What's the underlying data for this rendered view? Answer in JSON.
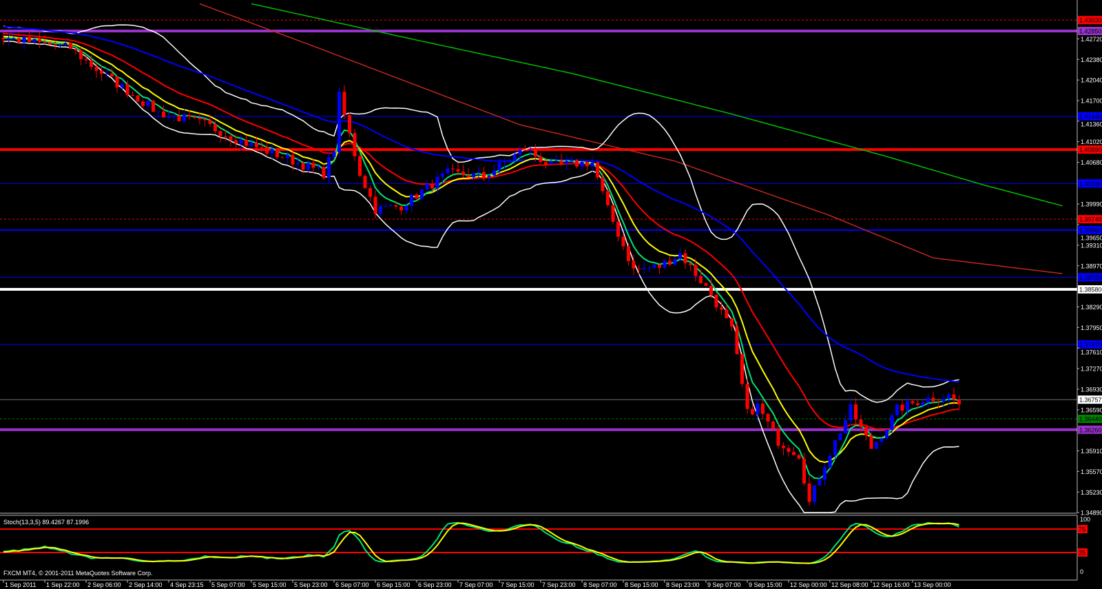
{
  "chart_data": {
    "type": "candlestick",
    "symbol_timeframe": "",
    "timeframe_hint": "H1",
    "colors": {
      "bull": "#0000ff",
      "bear": "#ff0000",
      "background": "#000000",
      "axis": "#c0c0c0"
    },
    "price_axis": {
      "ylim": [
        1.3489,
        1.4303
      ],
      "ticks": [
        "1.42720",
        "1.42380",
        "1.42040",
        "1.41700",
        "1.41360",
        "1.41020",
        "1.40680",
        "1.39990",
        "1.39650",
        "1.39310",
        "1.38970",
        "1.38290",
        "1.37950",
        "1.37610",
        "1.37270",
        "1.36930",
        "1.36590",
        "1.35910",
        "1.35570",
        "1.35230",
        "1.34890"
      ]
    },
    "time_axis": {
      "ticks": [
        "1 Sep 2011",
        "1 Sep 22:00",
        "2 Sep 06:00",
        "2 Sep 14:00",
        "4 Sep 23:15",
        "5 Sep 07:00",
        "5 Sep 15:00",
        "5 Sep 23:00",
        "6 Sep 07:00",
        "6 Sep 15:00",
        "6 Sep 23:00",
        "7 Sep 07:00",
        "7 Sep 15:00",
        "7 Sep 23:00",
        "8 Sep 07:00",
        "8 Sep 15:00",
        "8 Sep 23:00",
        "9 Sep 07:00",
        "9 Sep 15:00",
        "12 Sep 00:00",
        "12 Sep 08:00",
        "12 Sep 16:00",
        "13 Sep 00:00"
      ],
      "bars_per_tick": 8
    },
    "close_keypoints": [
      [
        0,
        1.4274
      ],
      [
        13,
        1.4257
      ],
      [
        17,
        1.4228
      ],
      [
        30,
        1.415
      ],
      [
        39,
        1.4131
      ],
      [
        46,
        1.4103
      ],
      [
        55,
        1.4074
      ],
      [
        62,
        1.405
      ],
      [
        64,
        1.409
      ],
      [
        65,
        1.4177
      ],
      [
        69,
        1.405
      ],
      [
        72,
        1.399
      ],
      [
        77,
        1.3996
      ],
      [
        86,
        1.405
      ],
      [
        93,
        1.4045
      ],
      [
        101,
        1.409
      ],
      [
        106,
        1.4062
      ],
      [
        114,
        1.4068
      ],
      [
        117,
        1.399
      ],
      [
        122,
        1.389
      ],
      [
        127,
        1.3896
      ],
      [
        131,
        1.3917
      ],
      [
        137,
        1.385
      ],
      [
        141,
        1.379
      ],
      [
        144,
        1.3653
      ],
      [
        146,
        1.3665
      ],
      [
        150,
        1.3607
      ],
      [
        154,
        1.3585
      ],
      [
        156,
        1.3505
      ],
      [
        159,
        1.357
      ],
      [
        164,
        1.366
      ],
      [
        168,
        1.3596
      ],
      [
        171,
        1.363
      ],
      [
        173,
        1.366
      ],
      [
        178,
        1.3676
      ],
      [
        183,
        1.3682
      ],
      [
        185,
        1.3668
      ]
    ],
    "bar_count": 186,
    "indicators": {
      "ma_fast": {
        "color": "#00e676",
        "period": 5
      },
      "ma_mid": {
        "color": "#ffff00",
        "period": 10
      },
      "ma_slow": {
        "color": "#ff0000",
        "period": 21
      },
      "ma_blue": {
        "color": "#0000ff",
        "period": 55
      },
      "bollinger": {
        "color": "#ffffff",
        "period": 20,
        "deviation": 2
      },
      "ma_100_shifted": {
        "color": "#c0281e",
        "keypoints": [
          [
            38,
            1.433
          ],
          [
            60,
            1.426
          ],
          [
            100,
            1.413
          ],
          [
            130,
            1.407
          ],
          [
            160,
            1.398
          ],
          [
            180,
            1.391
          ],
          [
            205,
            1.3884
          ]
        ]
      },
      "ma_200_shifted": {
        "color": "#00c000",
        "keypoints": [
          [
            48,
            1.433
          ],
          [
            80,
            1.427
          ],
          [
            110,
            1.4215
          ],
          [
            140,
            1.415
          ],
          [
            170,
            1.408
          ],
          [
            190,
            1.403
          ],
          [
            205,
            1.3996
          ]
        ]
      }
    },
    "levels": [
      {
        "price": "1.43030",
        "color": "#ff0000",
        "style": "dotted",
        "tag_text_color": "#000"
      },
      {
        "price": "1.42850",
        "color": "#9932cc",
        "style": "thick",
        "tag_text_color": "#000"
      },
      {
        "price": "1.41440",
        "color": "#0000ff",
        "style": "thin",
        "tag_text_color": "#000"
      },
      {
        "price": "1.40890",
        "color": "#ff0000",
        "style": "thick",
        "tag_text_color": "#000"
      },
      {
        "price": "1.40330",
        "color": "#0000ff",
        "style": "thin",
        "tag_text_color": "#000"
      },
      {
        "price": "1.39740",
        "color": "#ff0000",
        "style": "dotted",
        "tag_text_color": "#000"
      },
      {
        "price": "1.39560",
        "color": "#0000ff",
        "style": "medium",
        "tag_text_color": "#000"
      },
      {
        "price": "1.38780",
        "color": "#0000ff",
        "style": "thin",
        "tag_text_color": "#000"
      },
      {
        "price": "1.38580",
        "color": "#ffffff",
        "style": "thick",
        "tag_text_color": "#000"
      },
      {
        "price": "1.37670",
        "color": "#0000ff",
        "style": "thin",
        "tag_text_color": "#000"
      },
      {
        "price": "1.36757",
        "color": "#6a7380",
        "style": "thin",
        "tag_text_color": "#000",
        "tag_bg": "#ffffff"
      },
      {
        "price": "1.36440",
        "color": "#008000",
        "style": "dotted",
        "tag_text_color": "#000"
      },
      {
        "price": "1.36260",
        "color": "#9932cc",
        "style": "thick",
        "tag_text_color": "#000"
      }
    ],
    "stochastic": {
      "label": "Stoch(13,3,5) 89.4267 87.1996",
      "k_color": "#00e676",
      "d_color": "#ffff00",
      "levels": [
        "75",
        "25"
      ],
      "level_color": "#ff0000",
      "scale_labels": [
        "100",
        "0"
      ],
      "k_period": 13,
      "d_period": 3,
      "slowing": 5
    },
    "copyright": "FXCM MT4, © 2001-2011 MetaQuotes Software Corp."
  }
}
